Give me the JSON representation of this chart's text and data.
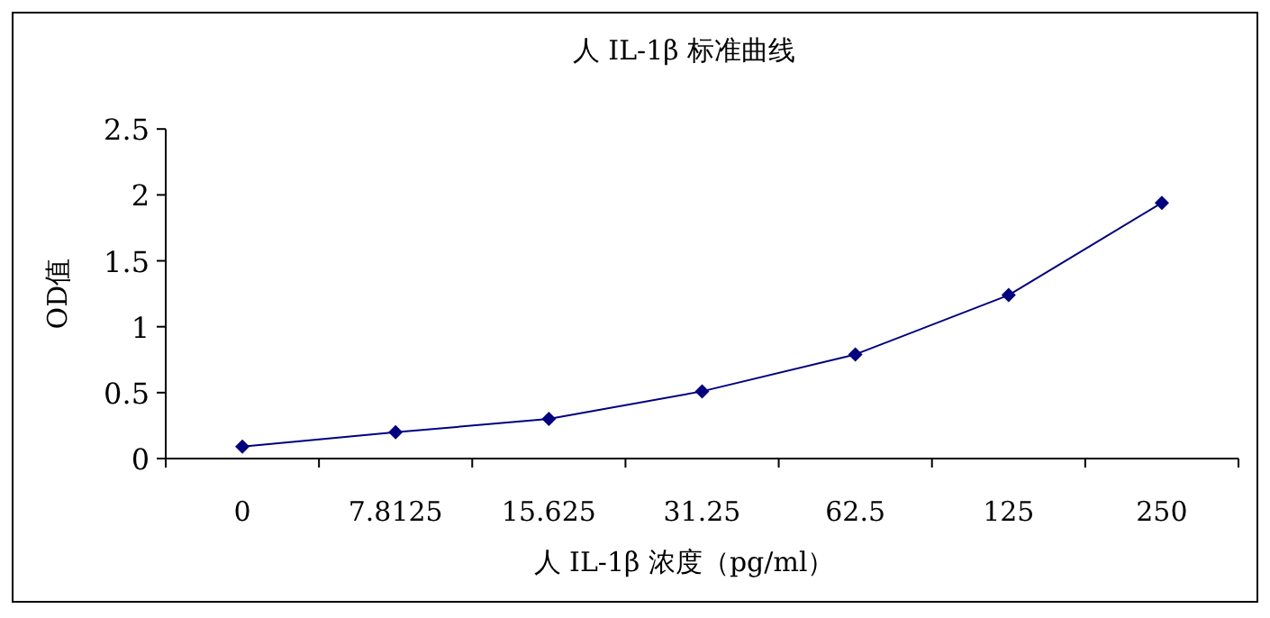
{
  "chart_data": {
    "type": "line",
    "title": "人 IL-1β 标准曲线",
    "xlabel": "人 IL-1β 浓度（pg/ml）",
    "ylabel": "OD值",
    "categories": [
      "0",
      "7.8125",
      "15.625",
      "31.25",
      "62.5",
      "125",
      "250"
    ],
    "series": [
      {
        "color": "#000080",
        "values": [
          0.09,
          0.2,
          0.3,
          0.51,
          0.79,
          1.24,
          1.94
        ]
      }
    ],
    "marker": "diamond",
    "line_style": "solid",
    "ylim": [
      0,
      2.5
    ],
    "yticks": [
      0,
      0.5,
      1,
      1.5,
      2,
      2.5
    ]
  }
}
